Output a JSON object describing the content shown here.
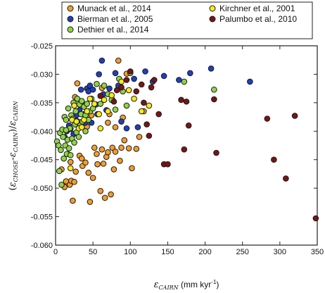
{
  "chart_data": {
    "type": "scatter",
    "title": "",
    "xlabel": "ε_CAIRN (mm kyr⁻¹)",
    "xlabel_parts": {
      "symbol": "ε",
      "subscript": "CAIRN",
      "units_pre": " (mm kyr",
      "units_sup": "-1",
      "units_post": ")"
    },
    "ylabel": "(ε_CHOSE-ε_CAIRN)/ε_CAIRN",
    "ylabel_parts": {
      "open": "(",
      "sym1": "ε",
      "sub1": "CHOSE",
      "minus": "-",
      "sym2": "ε",
      "sub2": "CAIRN",
      "close": ")/",
      "sym3": "ε",
      "sub3": "CAIRN"
    },
    "xlim": [
      0,
      350
    ],
    "ylim": [
      -0.06,
      -0.025
    ],
    "xticks": [
      0,
      50,
      100,
      150,
      200,
      250,
      300,
      350
    ],
    "xtick_labels": [
      "0",
      "50",
      "100",
      "150",
      "200",
      "250",
      "300",
      "350"
    ],
    "yticks": [
      -0.06,
      -0.055,
      -0.05,
      -0.045,
      -0.04,
      -0.035,
      -0.03,
      -0.025
    ],
    "ytick_labels": [
      "-0.060",
      "-0.055",
      "-0.050",
      "-0.045",
      "-0.040",
      "-0.035",
      "-0.030",
      "-0.025"
    ],
    "grid": false,
    "legend_position": "top, above plot",
    "series": [
      {
        "name": "Munack et al., 2014",
        "color": "#f39c2b",
        "points": [
          [
            8,
            -0.0467
          ],
          [
            12,
            -0.0498
          ],
          [
            14,
            -0.0488
          ],
          [
            16,
            -0.044
          ],
          [
            19,
            -0.0494
          ],
          [
            21,
            -0.0487
          ],
          [
            23,
            -0.0522
          ],
          [
            25,
            -0.0489
          ],
          [
            20,
            -0.0454
          ],
          [
            27,
            -0.0471
          ],
          [
            29,
            -0.0316
          ],
          [
            32,
            -0.0443
          ],
          [
            36,
            -0.0461
          ],
          [
            40,
            -0.0455
          ],
          [
            42,
            -0.0392
          ],
          [
            44,
            -0.0473
          ],
          [
            46,
            -0.0524
          ],
          [
            50,
            -0.0482
          ],
          [
            52,
            -0.0429
          ],
          [
            56,
            -0.0458
          ],
          [
            60,
            -0.0505
          ],
          [
            62,
            -0.0432
          ],
          [
            64,
            -0.0457
          ],
          [
            66,
            -0.0517
          ],
          [
            68,
            -0.0445
          ],
          [
            70,
            -0.0437
          ],
          [
            72,
            -0.037
          ],
          [
            74,
            -0.0511
          ],
          [
            76,
            -0.0429
          ],
          [
            78,
            -0.0467
          ],
          [
            80,
            -0.0436
          ],
          [
            84,
            -0.0276
          ],
          [
            86,
            -0.0452
          ],
          [
            88,
            -0.0429
          ],
          [
            90,
            -0.0376
          ],
          [
            92,
            -0.0416
          ],
          [
            95,
            -0.0299
          ],
          [
            98,
            -0.043
          ],
          [
            102,
            -0.0465
          ],
          [
            108,
            -0.0431
          ],
          [
            112,
            -0.041
          ],
          [
            118,
            -0.0365
          ],
          [
            70,
            -0.0385
          ],
          [
            55,
            -0.044
          ],
          [
            35,
            -0.0448
          ],
          [
            26,
            -0.034
          ],
          [
            48,
            -0.0372
          ],
          [
            62,
            -0.0324
          ],
          [
            80,
            -0.0393
          ]
        ]
      },
      {
        "name": "Bierman et al., 2005",
        "color": "#1f3fbf",
        "points": [
          [
            12,
            -0.041
          ],
          [
            15,
            -0.04
          ],
          [
            18,
            -0.039
          ],
          [
            20,
            -0.0396
          ],
          [
            22,
            -0.038
          ],
          [
            24,
            -0.0405
          ],
          [
            26,
            -0.0377
          ],
          [
            28,
            -0.0372
          ],
          [
            30,
            -0.039
          ],
          [
            32,
            -0.0363
          ],
          [
            34,
            -0.0327
          ],
          [
            36,
            -0.0353
          ],
          [
            38,
            -0.037
          ],
          [
            40,
            -0.0385
          ],
          [
            42,
            -0.0325
          ],
          [
            44,
            -0.033
          ],
          [
            46,
            -0.032
          ],
          [
            50,
            -0.0327
          ],
          [
            54,
            -0.0353
          ],
          [
            58,
            -0.03
          ],
          [
            62,
            -0.0276
          ],
          [
            64,
            -0.0335
          ],
          [
            68,
            -0.0363
          ],
          [
            72,
            -0.0325
          ],
          [
            76,
            -0.0345
          ],
          [
            80,
            -0.0298
          ],
          [
            84,
            -0.032
          ],
          [
            88,
            -0.0383
          ],
          [
            95,
            -0.0395
          ],
          [
            100,
            -0.0296
          ],
          [
            105,
            -0.0308
          ],
          [
            110,
            -0.0393
          ],
          [
            115,
            -0.0365
          ],
          [
            120,
            -0.0295
          ],
          [
            130,
            -0.0313
          ],
          [
            145,
            -0.0303
          ],
          [
            165,
            -0.031
          ],
          [
            180,
            -0.0298
          ],
          [
            208,
            -0.029
          ],
          [
            260,
            -0.0313
          ],
          [
            48,
            -0.0385
          ],
          [
            56,
            -0.037
          ]
        ]
      },
      {
        "name": "Dethier et al., 2014",
        "color": "#8fd445",
        "points": [
          [
            2,
            -0.0418
          ],
          [
            4,
            -0.0425
          ],
          [
            6,
            -0.0403
          ],
          [
            7,
            -0.0433
          ],
          [
            8,
            -0.0494
          ],
          [
            9,
            -0.0397
          ],
          [
            10,
            -0.041
          ],
          [
            11,
            -0.0448
          ],
          [
            12,
            -0.0375
          ],
          [
            13,
            -0.0425
          ],
          [
            14,
            -0.038
          ],
          [
            15,
            -0.044
          ],
          [
            16,
            -0.0415
          ],
          [
            17,
            -0.036
          ],
          [
            18,
            -0.043
          ],
          [
            19,
            -0.0395
          ],
          [
            20,
            -0.0442
          ],
          [
            21,
            -0.0372
          ],
          [
            22,
            -0.0413
          ],
          [
            23,
            -0.0378
          ],
          [
            24,
            -0.035
          ],
          [
            25,
            -0.042
          ],
          [
            26,
            -0.0388
          ],
          [
            27,
            -0.0365
          ],
          [
            28,
            -0.0402
          ],
          [
            29,
            -0.0343
          ],
          [
            30,
            -0.0383
          ],
          [
            31,
            -0.041
          ],
          [
            32,
            -0.0353
          ],
          [
            33,
            -0.039
          ],
          [
            34,
            -0.037
          ],
          [
            35,
            -0.0347
          ],
          [
            36,
            -0.0383
          ],
          [
            38,
            -0.0357
          ],
          [
            40,
            -0.0372
          ],
          [
            42,
            -0.0352
          ],
          [
            44,
            -0.038
          ],
          [
            46,
            -0.0365
          ],
          [
            48,
            -0.0343
          ],
          [
            50,
            -0.036
          ],
          [
            55,
            -0.0317
          ],
          [
            60,
            -0.0352
          ],
          [
            65,
            -0.032
          ],
          [
            70,
            -0.0335
          ],
          [
            75,
            -0.0345
          ],
          [
            80,
            -0.0362
          ],
          [
            85,
            -0.0308
          ],
          [
            90,
            -0.033
          ],
          [
            95,
            -0.0355
          ],
          [
            100,
            -0.0298
          ],
          [
            172,
            -0.0313
          ],
          [
            212,
            -0.0327
          ],
          [
            5,
            -0.047
          ],
          [
            14,
            -0.0398
          ],
          [
            40,
            -0.04
          ]
        ]
      },
      {
        "name": "Kirchner et al., 2001",
        "color": "#ffe81a",
        "points": [
          [
            20,
            -0.0465
          ],
          [
            22,
            -0.038
          ],
          [
            25,
            -0.0355
          ],
          [
            28,
            -0.0383
          ],
          [
            31,
            -0.0395
          ],
          [
            35,
            -0.0393
          ],
          [
            38,
            -0.038
          ],
          [
            42,
            -0.0365
          ],
          [
            46,
            -0.0343
          ],
          [
            52,
            -0.0352
          ],
          [
            58,
            -0.037
          ],
          [
            60,
            -0.0395
          ],
          [
            65,
            -0.0345
          ],
          [
            70,
            -0.0365
          ],
          [
            75,
            -0.0337
          ],
          [
            88,
            -0.0313
          ],
          [
            98,
            -0.0328
          ],
          [
            105,
            -0.0343
          ],
          [
            115,
            -0.0365
          ],
          [
            125,
            -0.0355
          ]
        ]
      },
      {
        "name": "Palumbo et al., 2010",
        "color": "#7a1414",
        "points": [
          [
            60,
            -0.0338
          ],
          [
            78,
            -0.0348
          ],
          [
            82,
            -0.0328
          ],
          [
            88,
            -0.0323
          ],
          [
            95,
            -0.031
          ],
          [
            100,
            -0.0295
          ],
          [
            108,
            -0.033
          ],
          [
            115,
            -0.0318
          ],
          [
            118,
            -0.035
          ],
          [
            122,
            -0.0388
          ],
          [
            125,
            -0.0408
          ],
          [
            128,
            -0.0323
          ],
          [
            132,
            -0.031
          ],
          [
            138,
            -0.037
          ],
          [
            145,
            -0.0458
          ],
          [
            150,
            -0.0458
          ],
          [
            168,
            -0.0345
          ],
          [
            172,
            -0.0432
          ],
          [
            175,
            -0.0348
          ],
          [
            178,
            -0.039
          ],
          [
            212,
            -0.0344
          ],
          [
            215,
            -0.0438
          ],
          [
            283,
            -0.0378
          ],
          [
            292,
            -0.045
          ],
          [
            308,
            -0.0483
          ],
          [
            320,
            -0.0373
          ],
          [
            348,
            -0.0553
          ]
        ]
      }
    ]
  }
}
